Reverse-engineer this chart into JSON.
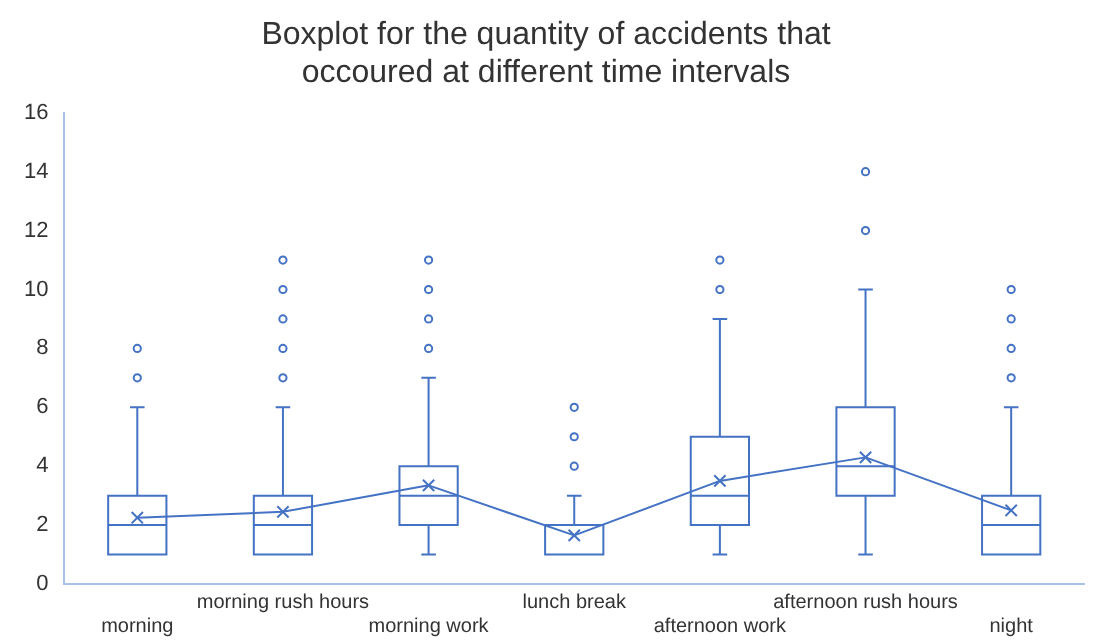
{
  "chart_data": {
    "type": "box",
    "title": "Boxplot for the quantity of accidents that occoured at different time intervals",
    "categories": [
      "morning",
      "morning rush hours",
      "morning work",
      "lunch break",
      "afternoon work",
      "afternoon rush hours",
      "night"
    ],
    "series": [
      {
        "type": "box",
        "color": "#4472c4",
        "boxes": [
          {
            "low": 1,
            "q1": 1,
            "median": 2,
            "q3": 3,
            "high": 6,
            "outliers": [
              7,
              8
            ]
          },
          {
            "low": 1,
            "q1": 1,
            "median": 2,
            "q3": 3,
            "high": 6,
            "outliers": [
              7,
              8,
              9,
              10,
              11
            ]
          },
          {
            "low": 1,
            "q1": 2,
            "median": 3,
            "q3": 4,
            "high": 7,
            "outliers": [
              8,
              9,
              10,
              11
            ]
          },
          {
            "low": 1,
            "q1": 1,
            "median": 2,
            "q3": 2,
            "high": 3,
            "outliers": [
              4,
              5,
              6
            ]
          },
          {
            "low": 1,
            "q1": 2,
            "median": 3,
            "q3": 5,
            "high": 9,
            "outliers": [
              10,
              11
            ]
          },
          {
            "low": 1,
            "q1": 3,
            "median": 4,
            "q3": 6,
            "high": 10,
            "outliers": [
              12,
              14
            ]
          },
          {
            "low": 1,
            "q1": 1,
            "median": 2,
            "q3": 3,
            "high": 6,
            "outliers": [
              7,
              8,
              9,
              10
            ]
          }
        ]
      },
      {
        "type": "line",
        "color": "#4472c4",
        "marker": "cross",
        "values": [
          2.25,
          2.45,
          3.35,
          1.65,
          3.5,
          4.3,
          2.5
        ]
      }
    ],
    "ylim": [
      0,
      16
    ],
    "yticks": [
      0,
      2,
      4,
      6,
      8,
      10,
      12,
      14,
      16
    ],
    "grid": false,
    "legend": false
  }
}
